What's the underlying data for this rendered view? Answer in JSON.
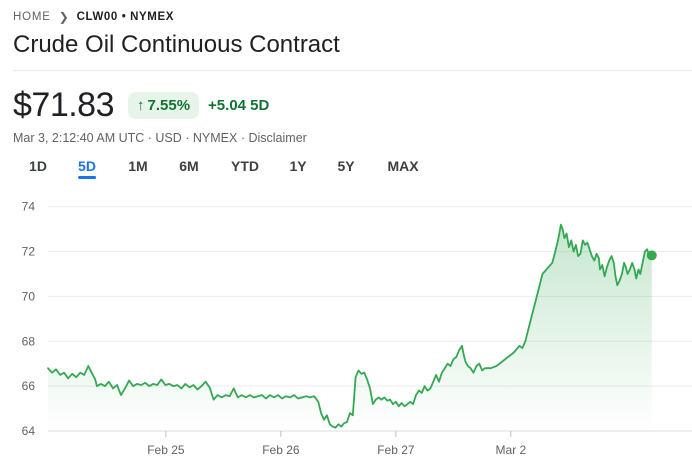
{
  "breadcrumb": {
    "home": "HOME",
    "symbol": "CLW00 • NYMEX"
  },
  "title": "Crude Oil Continuous Contract",
  "quote": {
    "price": "$71.83",
    "percent_change": "7.55%",
    "abs_change": "+5.04 5D",
    "meta_prefix": "Mar 3, 2:12:40 AM UTC · USD · NYMEX · ",
    "disclaimer": "Disclaimer"
  },
  "range_tabs": [
    "1D",
    "5D",
    "1M",
    "6M",
    "YTD",
    "1Y",
    "5Y",
    "MAX"
  ],
  "active_tab": "5D",
  "colors": {
    "up": "#34a853",
    "up_text": "#137333",
    "up_bg": "#e6f4ea",
    "accent": "#1a73e8"
  },
  "chart_data": {
    "type": "area",
    "ylim": [
      64,
      74.3
    ],
    "y_ticks": [
      64,
      66,
      68,
      70,
      72,
      74
    ],
    "x_range": [
      0,
      100
    ],
    "x_ticks": [
      {
        "label": "Feb 25",
        "x": 20.5
      },
      {
        "label": "Feb 26",
        "x": 40.5
      },
      {
        "label": "Feb 27",
        "x": 60.5
      },
      {
        "label": "Mar 2",
        "x": 80.5
      }
    ],
    "grid": true,
    "series": [
      {
        "points": [
          [
            0,
            66.8
          ],
          [
            0.7,
            66.6
          ],
          [
            1.4,
            66.75
          ],
          [
            2.1,
            66.5
          ],
          [
            2.8,
            66.6
          ],
          [
            3.5,
            66.35
          ],
          [
            4.2,
            66.55
          ],
          [
            4.9,
            66.4
          ],
          [
            5.6,
            66.6
          ],
          [
            6.3,
            66.5
          ],
          [
            7.0,
            66.9
          ],
          [
            7.7,
            66.55
          ],
          [
            8.2,
            66.3
          ],
          [
            8.5,
            66.0
          ],
          [
            9.2,
            66.1
          ],
          [
            9.9,
            66.0
          ],
          [
            10.6,
            66.2
          ],
          [
            11.3,
            65.9
          ],
          [
            12.0,
            66.05
          ],
          [
            12.7,
            65.6
          ],
          [
            13.4,
            65.9
          ],
          [
            14.1,
            66.25
          ],
          [
            14.8,
            66.0
          ],
          [
            15.5,
            66.1
          ],
          [
            16.2,
            66.05
          ],
          [
            16.9,
            66.15
          ],
          [
            17.6,
            66.0
          ],
          [
            18.3,
            66.1
          ],
          [
            19.0,
            66.05
          ],
          [
            19.7,
            66.3
          ],
          [
            20.4,
            66.05
          ],
          [
            21.1,
            66.1
          ],
          [
            21.8,
            66.0
          ],
          [
            22.5,
            66.05
          ],
          [
            23.2,
            65.9
          ],
          [
            23.9,
            66.1
          ],
          [
            24.6,
            65.95
          ],
          [
            25.3,
            66.05
          ],
          [
            26.0,
            65.85
          ],
          [
            26.7,
            66.0
          ],
          [
            27.4,
            66.2
          ],
          [
            28.1,
            65.95
          ],
          [
            28.8,
            65.4
          ],
          [
            29.5,
            65.6
          ],
          [
            30.2,
            65.5
          ],
          [
            30.9,
            65.6
          ],
          [
            31.6,
            65.55
          ],
          [
            32.3,
            65.9
          ],
          [
            33.0,
            65.5
          ],
          [
            33.7,
            65.6
          ],
          [
            34.4,
            65.5
          ],
          [
            35.1,
            65.6
          ],
          [
            35.8,
            65.5
          ],
          [
            36.5,
            65.55
          ],
          [
            37.2,
            65.6
          ],
          [
            37.9,
            65.45
          ],
          [
            38.6,
            65.6
          ],
          [
            39.3,
            65.5
          ],
          [
            40.0,
            65.6
          ],
          [
            40.7,
            65.45
          ],
          [
            41.4,
            65.55
          ],
          [
            42.1,
            65.5
          ],
          [
            42.8,
            65.6
          ],
          [
            43.5,
            65.45
          ],
          [
            44.2,
            65.5
          ],
          [
            44.9,
            65.55
          ],
          [
            45.6,
            65.5
          ],
          [
            46.3,
            65.55
          ],
          [
            47.0,
            65.3
          ],
          [
            47.5,
            64.8
          ],
          [
            48.0,
            64.5
          ],
          [
            48.5,
            64.7
          ],
          [
            49.0,
            64.3
          ],
          [
            49.5,
            64.2
          ],
          [
            50.0,
            64.15
          ],
          [
            50.5,
            64.3
          ],
          [
            51.0,
            64.2
          ],
          [
            51.5,
            64.35
          ],
          [
            52.0,
            64.4
          ],
          [
            52.5,
            64.8
          ],
          [
            53.0,
            64.7
          ],
          [
            53.5,
            66.4
          ],
          [
            54.0,
            66.7
          ],
          [
            54.5,
            66.55
          ],
          [
            55.0,
            66.6
          ],
          [
            55.5,
            66.3
          ],
          [
            56.0,
            65.9
          ],
          [
            56.5,
            65.2
          ],
          [
            57.0,
            65.4
          ],
          [
            57.5,
            65.5
          ],
          [
            58.0,
            65.4
          ],
          [
            58.5,
            65.5
          ],
          [
            59.0,
            65.35
          ],
          [
            59.5,
            65.4
          ],
          [
            60.0,
            65.2
          ],
          [
            60.5,
            65.3
          ],
          [
            61.0,
            65.1
          ],
          [
            61.5,
            65.25
          ],
          [
            62.0,
            65.1
          ],
          [
            62.5,
            65.2
          ],
          [
            63.0,
            65.3
          ],
          [
            63.5,
            65.2
          ],
          [
            64.0,
            65.6
          ],
          [
            64.5,
            65.8
          ],
          [
            65.0,
            65.7
          ],
          [
            65.5,
            66.0
          ],
          [
            66.0,
            65.8
          ],
          [
            66.5,
            65.9
          ],
          [
            67.0,
            66.2
          ],
          [
            67.5,
            66.5
          ],
          [
            68.0,
            66.2
          ],
          [
            68.5,
            66.6
          ],
          [
            69.0,
            66.8
          ],
          [
            69.5,
            67.0
          ],
          [
            70.0,
            66.9
          ],
          [
            70.5,
            67.2
          ],
          [
            71.0,
            67.3
          ],
          [
            71.5,
            67.6
          ],
          [
            72.0,
            67.8
          ],
          [
            72.3,
            67.4
          ],
          [
            72.6,
            67.1
          ],
          [
            73.0,
            66.9
          ],
          [
            73.5,
            66.8
          ],
          [
            74.0,
            66.6
          ],
          [
            74.5,
            66.9
          ],
          [
            75.0,
            67.0
          ],
          [
            75.5,
            66.7
          ],
          [
            76.0,
            66.8
          ],
          [
            77.0,
            66.8
          ],
          [
            78.0,
            66.9
          ],
          [
            79.0,
            67.1
          ],
          [
            80.0,
            67.3
          ],
          [
            81.0,
            67.5
          ],
          [
            82.0,
            67.8
          ],
          [
            82.5,
            67.7
          ],
          [
            83.0,
            68.0
          ],
          [
            84.0,
            69.0
          ],
          [
            85.0,
            70.0
          ],
          [
            86.0,
            71.0
          ],
          [
            87.0,
            71.3
          ],
          [
            87.7,
            71.5
          ],
          [
            88.2,
            72.0
          ],
          [
            88.7,
            72.5
          ],
          [
            89.2,
            73.2
          ],
          [
            89.5,
            73.0
          ],
          [
            89.8,
            72.6
          ],
          [
            90.2,
            72.8
          ],
          [
            90.6,
            72.2
          ],
          [
            91.0,
            72.5
          ],
          [
            91.4,
            72.0
          ],
          [
            91.8,
            72.3
          ],
          [
            92.2,
            71.8
          ],
          [
            92.6,
            71.9
          ],
          [
            93.0,
            72.5
          ],
          [
            93.4,
            72.3
          ],
          [
            93.8,
            72.4
          ],
          [
            94.2,
            72.1
          ],
          [
            94.6,
            71.8
          ],
          [
            95.0,
            71.6
          ],
          [
            95.4,
            71.9
          ],
          [
            95.8,
            71.7
          ],
          [
            96.0,
            71.2
          ],
          [
            96.4,
            71.4
          ],
          [
            96.8,
            70.9
          ],
          [
            97.2,
            71.3
          ],
          [
            97.6,
            71.6
          ],
          [
            98.0,
            71.8
          ],
          [
            98.4,
            71.5
          ],
          [
            98.7,
            70.9
          ],
          [
            99.0,
            70.5
          ],
          [
            99.4,
            70.7
          ],
          [
            99.8,
            71.0
          ],
          [
            100.2,
            71.5
          ],
          [
            100.5,
            71.3
          ],
          [
            100.8,
            71.0
          ],
          [
            101.2,
            71.2
          ],
          [
            101.6,
            71.5
          ],
          [
            102.0,
            71.2
          ],
          [
            102.3,
            70.8
          ],
          [
            102.7,
            71.2
          ],
          [
            103.0,
            71.0
          ],
          [
            103.4,
            71.5
          ],
          [
            103.8,
            72.0
          ],
          [
            104.2,
            72.1
          ],
          [
            104.6,
            71.8
          ],
          [
            105.0,
            71.83
          ]
        ]
      }
    ]
  }
}
